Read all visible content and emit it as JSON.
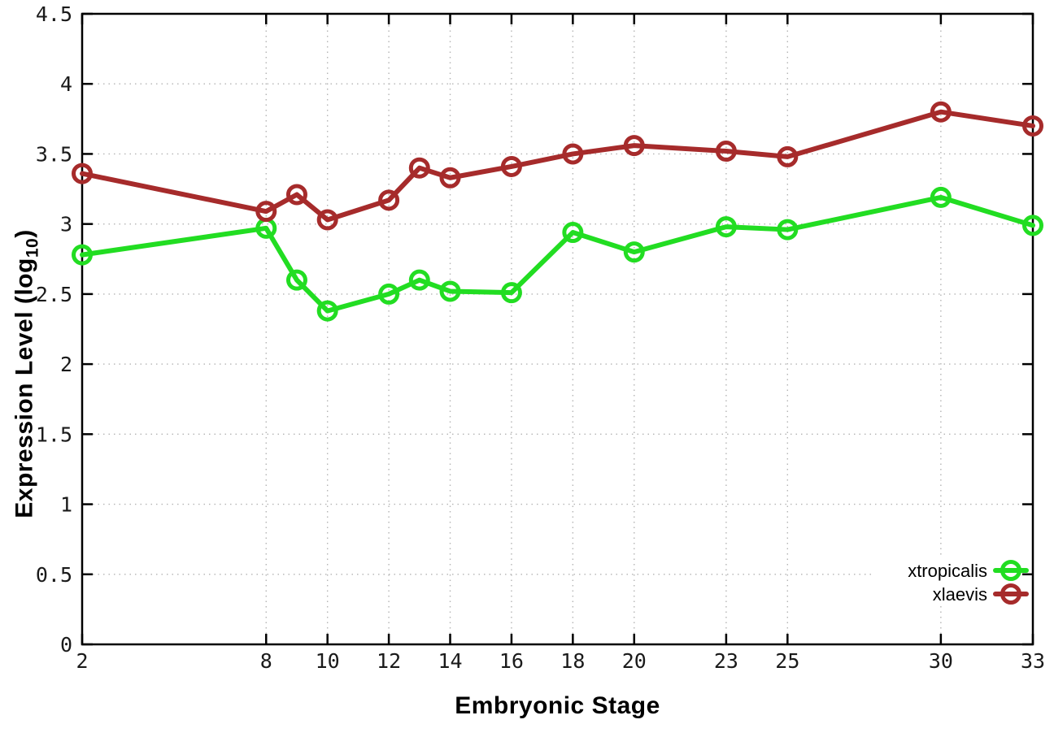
{
  "chart_data": {
    "type": "line",
    "title": "",
    "xlabel": "Embryonic Stage",
    "ylabel": {
      "text": "Expression Level (log",
      "subscript": "10",
      "suffix": ")"
    },
    "x": [
      2,
      8,
      9,
      10,
      12,
      13,
      14,
      16,
      18,
      20,
      23,
      25,
      30,
      33
    ],
    "series": [
      {
        "name": "xtropicalis",
        "color": "#22dd22",
        "values": [
          2.78,
          2.97,
          2.6,
          2.38,
          2.5,
          2.6,
          2.52,
          2.51,
          2.94,
          2.8,
          2.98,
          2.96,
          3.19,
          2.99
        ]
      },
      {
        "name": "xlaevis",
        "color": "#a62b2b",
        "values": [
          3.36,
          3.09,
          3.21,
          3.03,
          3.17,
          3.4,
          3.33,
          3.41,
          3.5,
          3.56,
          3.52,
          3.48,
          3.8,
          3.7
        ]
      }
    ],
    "xlim": [
      2,
      33
    ],
    "ylim": [
      0,
      4.5
    ],
    "x_ticks": [
      2,
      8,
      10,
      12,
      14,
      16,
      18,
      20,
      23,
      25,
      30,
      33
    ],
    "y_ticks": [
      0,
      0.5,
      1,
      1.5,
      2,
      2.5,
      3,
      3.5,
      4,
      4.5
    ],
    "grid": "dotted",
    "grid_color": "#b4b4b4",
    "border_color": "#000000",
    "tick_label_color": "#1a1a1a",
    "background": "#ffffff",
    "legend_position": "bottom-right"
  }
}
